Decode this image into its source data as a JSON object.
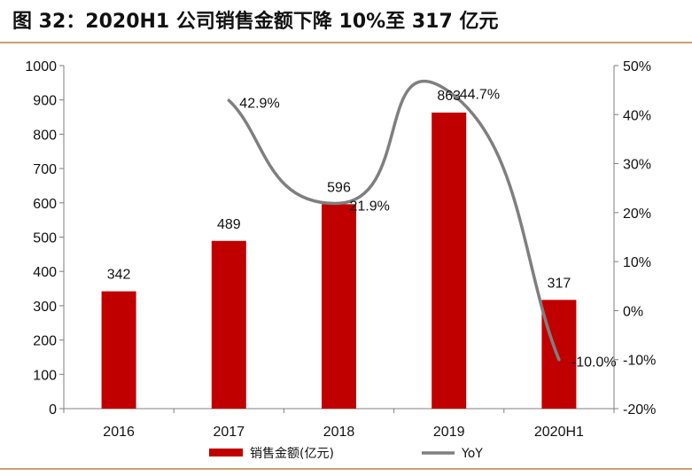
{
  "title": "图 32：2020H1 公司销售金额下降 10%至 317 亿元",
  "colors": {
    "bar": "#c00000",
    "line": "#7f7f7f",
    "rule": "#c9a36b",
    "axis": "#7f7f7f"
  },
  "chart_data": {
    "type": "bar",
    "categories": [
      "2016",
      "2017",
      "2018",
      "2019",
      "2020H1"
    ],
    "series": [
      {
        "name": "销售金额(亿元)",
        "type": "bar",
        "axis": "left",
        "values": [
          342,
          489,
          596,
          863,
          317
        ],
        "labels": [
          "342",
          "489",
          "596",
          "863",
          "317"
        ]
      },
      {
        "name": "YoY",
        "type": "line",
        "axis": "right",
        "smooth": true,
        "values": [
          null,
          42.9,
          21.9,
          44.7,
          -10.0
        ],
        "labels": [
          "",
          "42.9%",
          "21.9%",
          "44.7%",
          "-10.0%"
        ]
      }
    ],
    "ylim_left": [
      0,
      1000
    ],
    "yticks_left": [
      "0",
      "100",
      "200",
      "300",
      "400",
      "500",
      "600",
      "700",
      "800",
      "900",
      "1000"
    ],
    "ylim_right": [
      -20,
      50
    ],
    "yticks_right": [
      "-20%",
      "-10%",
      "0%",
      "10%",
      "20%",
      "30%",
      "40%",
      "50%"
    ],
    "legend_position": "bottom",
    "grid": false
  }
}
